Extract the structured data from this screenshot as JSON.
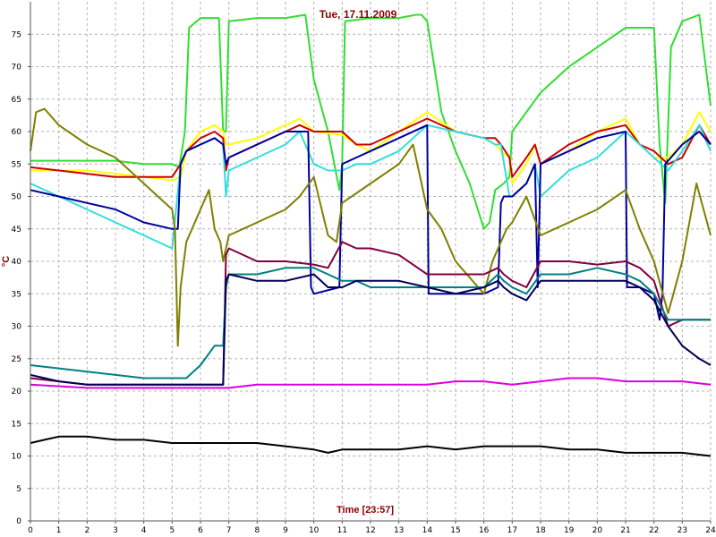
{
  "chart_data": {
    "type": "line",
    "title": "Tue, 17.11.2009",
    "xlabel": "Time [23:57]",
    "ylabel": "°C",
    "xlim": [
      0,
      24
    ],
    "ylim": [
      0,
      80
    ],
    "x_ticks": [
      0,
      1,
      2,
      3,
      4,
      5,
      6,
      7,
      8,
      9,
      10,
      11,
      12,
      13,
      14,
      15,
      16,
      17,
      18,
      19,
      20,
      21,
      22,
      23,
      24
    ],
    "y_ticks": [
      0,
      5,
      10,
      15,
      20,
      25,
      30,
      35,
      40,
      45,
      50,
      55,
      60,
      65,
      70,
      75
    ],
    "grid": true,
    "series": [
      {
        "color": "#33dd33",
        "x": [
          0,
          1,
          2,
          3,
          4,
          5,
          5.25,
          5.45,
          5.6,
          6,
          6.5,
          6.65,
          6.8,
          6.9,
          7,
          8,
          9,
          9.7,
          10,
          10.5,
          10.9,
          11,
          11.1,
          12,
          13,
          13.6,
          13.8,
          14,
          14.5,
          15,
          15.5,
          16,
          16.2,
          16.4,
          16.7,
          16.9,
          17,
          18,
          19,
          20,
          21,
          21.5,
          22,
          22.2,
          22.4,
          22.6,
          23,
          23.6,
          24
        ],
        "y": [
          55.5,
          55.5,
          55.5,
          55.5,
          55,
          55,
          54.5,
          60,
          76,
          77.5,
          77.5,
          77.5,
          60,
          60,
          77,
          77.5,
          77.5,
          78,
          68,
          60,
          51,
          55,
          77,
          77.5,
          77.5,
          78,
          78,
          77,
          63,
          57,
          52,
          45,
          46,
          51,
          52,
          53,
          60,
          66,
          70,
          73,
          76,
          76,
          76,
          58,
          49,
          73,
          77,
          78,
          64
        ]
      },
      {
        "color": "#ffff00",
        "x": [
          0,
          1,
          2,
          3,
          4,
          5,
          5.3,
          5.5,
          6,
          6.5,
          6.8,
          6.9,
          7,
          8,
          9,
          9.5,
          10,
          11,
          11.5,
          12,
          13,
          14,
          15,
          16,
          16.4,
          16.6,
          16.9,
          17,
          17.5,
          17.8,
          18,
          19,
          20,
          21,
          21.5,
          22,
          22.5,
          23,
          23.6,
          24
        ],
        "y": [
          54,
          54,
          54,
          53.5,
          53,
          52.5,
          53,
          57,
          60,
          61,
          60,
          58,
          58,
          59,
          61,
          62,
          60,
          59.5,
          58,
          57,
          60,
          63,
          60,
          59,
          58,
          57,
          56,
          52,
          55,
          58,
          55,
          57,
          60,
          62,
          58,
          56,
          56,
          58,
          63,
          60
        ]
      },
      {
        "color": "#cc0000",
        "x": [
          0,
          1,
          2,
          3,
          4,
          5,
          5.3,
          5.5,
          6,
          6.5,
          6.8,
          6.9,
          7,
          8,
          9,
          9.5,
          10,
          11,
          11.5,
          12,
          13,
          14,
          15,
          16,
          16.4,
          16.6,
          16.9,
          17,
          17.5,
          17.8,
          18,
          19,
          20,
          21,
          21.5,
          22,
          22.5,
          23,
          23.6,
          24
        ],
        "y": [
          54.5,
          54,
          53.5,
          53,
          53,
          53,
          55,
          57,
          59,
          60,
          59,
          54,
          56,
          58,
          60,
          61,
          60,
          60,
          58,
          58,
          60,
          62,
          60,
          59,
          59,
          58,
          56,
          53,
          56,
          58,
          55,
          58,
          60,
          61,
          58,
          57,
          55,
          56,
          61,
          58
        ]
      },
      {
        "color": "#33dddd",
        "x": [
          0,
          1,
          2,
          3,
          4,
          5,
          5.3,
          5.5,
          6,
          6.5,
          6.8,
          6.9,
          7,
          8,
          9,
          9.5,
          10,
          10.5,
          11,
          11.5,
          12,
          13,
          14,
          15,
          16,
          16.4,
          16.6,
          16.9,
          17,
          17.5,
          17.8,
          18,
          19,
          20,
          21,
          21.5,
          22,
          22.5,
          23,
          23.6,
          24
        ],
        "y": [
          52,
          50,
          48,
          46,
          44,
          42,
          55,
          57,
          58,
          59,
          58,
          50,
          54,
          56,
          58,
          60,
          55,
          54,
          54,
          55,
          55,
          57,
          61,
          60,
          59,
          58,
          58,
          50,
          50,
          52,
          55,
          50,
          54,
          56,
          60,
          58,
          56,
          54,
          57,
          61,
          57
        ]
      },
      {
        "color": "#000099",
        "x": [
          0,
          1,
          2,
          3,
          4,
          5,
          5.2,
          5.3,
          5.5,
          6,
          6.5,
          6.8,
          6.9,
          7,
          8,
          9,
          9.8,
          9.9,
          10,
          10.9,
          11,
          11.5,
          12,
          13,
          14,
          14.05,
          15,
          16,
          16.5,
          16.6,
          16.7,
          17,
          17.5,
          17.8,
          17.9,
          18,
          19,
          20,
          21,
          21.05,
          21.5,
          22,
          22.2,
          22.3,
          22.4,
          23,
          23.6,
          24
        ],
        "y": [
          51,
          50,
          49,
          48,
          46,
          45,
          45,
          55,
          57,
          58,
          59,
          58,
          55,
          56,
          58,
          60,
          60,
          36,
          35,
          36,
          55,
          56,
          57,
          59,
          61,
          35,
          35,
          35,
          36,
          49,
          50,
          50,
          52,
          55,
          36,
          55,
          57,
          59,
          60,
          36,
          36,
          35,
          31,
          35,
          55,
          58,
          60,
          58
        ]
      },
      {
        "color": "#808000",
        "x": [
          0,
          0.2,
          0.5,
          1,
          2,
          3,
          4,
          5,
          5.1,
          5.2,
          5.3,
          5.5,
          6,
          6.3,
          6.5,
          6.7,
          6.8,
          7,
          8,
          9,
          9.5,
          10,
          10.5,
          10.8,
          11,
          12,
          13,
          13.5,
          14,
          14.5,
          15,
          16,
          16.3,
          16.6,
          16.8,
          17,
          17.5,
          18,
          19,
          20,
          21,
          21.5,
          22,
          22.5,
          23,
          23.5,
          24
        ],
        "y": [
          57,
          63,
          63.5,
          61,
          58,
          56,
          52,
          48,
          45,
          27,
          36,
          43,
          48,
          51,
          45,
          43,
          40,
          44,
          46,
          48,
          50,
          53,
          44,
          43,
          49,
          52,
          55,
          58,
          48,
          45,
          40,
          35,
          40,
          43,
          45,
          46,
          50,
          44,
          46,
          48,
          51,
          45,
          40,
          32,
          40,
          52,
          44
        ]
      },
      {
        "color": "#800040",
        "x": [
          0,
          1,
          2,
          3,
          4,
          5,
          5.5,
          6,
          6.5,
          6.8,
          6.9,
          7,
          8,
          9,
          10,
          10.5,
          11,
          11.5,
          12,
          13,
          14,
          15,
          16,
          16.5,
          16.7,
          17,
          17.5,
          18,
          19,
          20,
          21,
          21.5,
          22,
          22.5,
          23,
          23.6,
          24
        ],
        "y": [
          22,
          21.5,
          21,
          21,
          21,
          21,
          21,
          21,
          21,
          21,
          41,
          42,
          40,
          40,
          39.5,
          39,
          43,
          42,
          42,
          41,
          38,
          38,
          38,
          39,
          38,
          37,
          36,
          40,
          40,
          39.5,
          40,
          39,
          37,
          30,
          31,
          31,
          31
        ]
      },
      {
        "color": "#008080",
        "x": [
          0,
          1,
          2,
          3,
          4,
          5,
          5.5,
          6,
          6.5,
          6.8,
          6.9,
          7,
          8,
          9,
          10,
          10.5,
          11,
          11.5,
          12,
          13,
          14,
          15,
          16,
          16.5,
          16.7,
          17,
          17.5,
          18,
          19,
          20,
          21,
          21.5,
          22,
          22.5,
          23,
          23.6,
          24
        ],
        "y": [
          24,
          23.5,
          23,
          22.5,
          22,
          22,
          22,
          24,
          27,
          27,
          36,
          38,
          38,
          39,
          39,
          38,
          37,
          37,
          36,
          36,
          36,
          36,
          36,
          38,
          37,
          36,
          35,
          38,
          38,
          39,
          38,
          37,
          35,
          31,
          31,
          31,
          31
        ]
      },
      {
        "color": "#000055",
        "x": [
          0,
          1,
          2,
          3,
          4,
          5,
          5.5,
          6,
          6.5,
          6.8,
          6.9,
          7,
          8,
          9,
          10,
          10.5,
          11,
          11.5,
          12,
          13,
          14,
          15,
          16,
          16.5,
          16.7,
          17,
          17.5,
          18,
          19,
          20,
          21,
          21.5,
          22,
          22.5,
          23,
          23.6,
          24
        ],
        "y": [
          22.5,
          21.5,
          21,
          21,
          21,
          21,
          21,
          21,
          21,
          21,
          37,
          38,
          37,
          37,
          38,
          36,
          36,
          37,
          37,
          37,
          36,
          35,
          36,
          37,
          36,
          35,
          34,
          37,
          37,
          37,
          37,
          36,
          34,
          30,
          27,
          25,
          24
        ]
      },
      {
        "color": "#dd00dd",
        "x": [
          0,
          2,
          4,
          6,
          7,
          8,
          10,
          12,
          14,
          15,
          16,
          17,
          18,
          19,
          20,
          21,
          22,
          23,
          24
        ],
        "y": [
          21,
          20.5,
          20.5,
          20.5,
          20.5,
          21,
          21,
          21,
          21,
          21.5,
          21.5,
          21,
          21.5,
          22,
          22,
          21.5,
          21.5,
          21.5,
          21
        ]
      },
      {
        "color": "#000000",
        "x": [
          0,
          0.5,
          1,
          2,
          3,
          4,
          5,
          6,
          7,
          8,
          9,
          10,
          10.5,
          11,
          12,
          13,
          14,
          15,
          16,
          17,
          18,
          19,
          20,
          21,
          22,
          23,
          24
        ],
        "y": [
          12,
          12.5,
          13,
          13,
          12.5,
          12.5,
          12,
          12,
          12,
          12,
          11.5,
          11,
          10.5,
          11,
          11,
          11,
          11.5,
          11,
          11.5,
          11.5,
          11.5,
          11,
          11,
          10.5,
          10.5,
          10.5,
          10
        ]
      }
    ]
  }
}
